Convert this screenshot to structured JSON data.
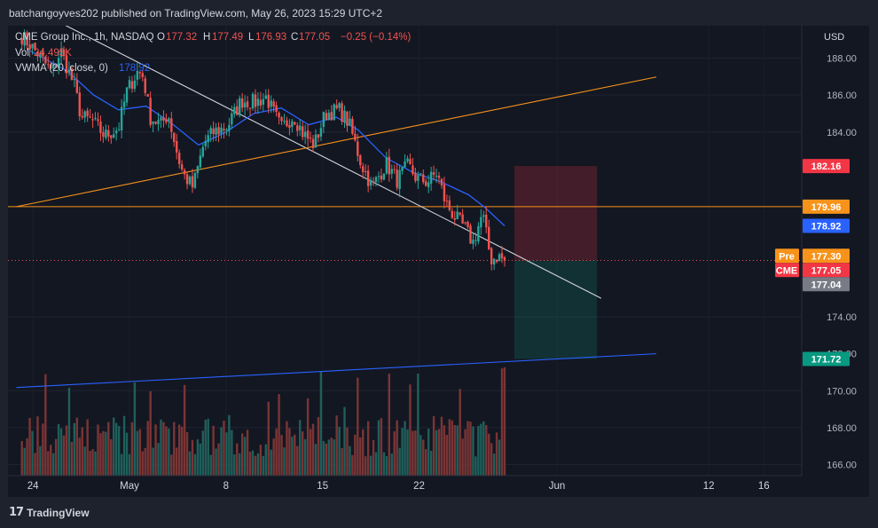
{
  "header": {
    "published_line": "batchangoyves202 published on TradingView.com, May 26, 2023 15:29 UTC+2"
  },
  "legend": {
    "symbol": "CME Group Inc., 1h, NASDAQ",
    "open_label": "O",
    "open": "177.32",
    "high_label": "H",
    "high": "177.49",
    "low_label": "L",
    "low": "176.93",
    "close_label": "C",
    "close": "177.05",
    "change": "−0.25 (−0.14%)",
    "vol_label": "Vol",
    "vol": "24.495K",
    "vwma_label": "VWMA (20, close, 0)",
    "vwma": "178.92"
  },
  "footer": {
    "brand": "TradingView",
    "logo_mark": "17"
  },
  "colors": {
    "background": "#131722",
    "up": "#26a69a",
    "down": "#ef5350",
    "vwma": "#2962ff",
    "trend_orange": "#f7931a",
    "trend_white": "#d1d4dc",
    "trend_blue": "#2962ff"
  },
  "chart_data": {
    "type": "candlestick",
    "currency": "USD",
    "y_ticks": [
      "188.00",
      "186.00",
      "184.00",
      "174.00",
      "170.00",
      "168.00",
      "166.00"
    ],
    "ylim": [
      165.4,
      189.2
    ],
    "x_ticks": [
      {
        "label": "24",
        "day": -7
      },
      {
        "label": "May",
        "day": 0
      },
      {
        "label": "8",
        "day": 7
      },
      {
        "label": "15",
        "day": 14
      },
      {
        "label": "22",
        "day": 21
      },
      {
        "label": "Jun",
        "day": 31
      },
      {
        "label": "12",
        "day": 42
      },
      {
        "label": "16",
        "day": 46
      }
    ],
    "price_tags": [
      {
        "label": "",
        "value": "182.16",
        "price": 182.16,
        "color": "#f23645"
      },
      {
        "label": "",
        "value": "179.96",
        "price": 179.96,
        "color": "#f7931a"
      },
      {
        "label": "",
        "value": "178.92",
        "price": 178.92,
        "color": "#2962ff"
      },
      {
        "label": "Pre",
        "value": "177.30",
        "price": 177.3,
        "color": "#f7931a"
      },
      {
        "label": "CME",
        "value": "177.05",
        "price": 177.05,
        "color": "#f23645"
      },
      {
        "label": "",
        "value": "177.04",
        "price": 177.04,
        "color": "#787b86"
      },
      {
        "label": "",
        "value": "171.72",
        "price": 171.72,
        "color": "#089981"
      }
    ],
    "hidden_tick": "172.00",
    "horizontal_line": {
      "price": 179.96
    },
    "trend_lines": [
      {
        "name": "upper-white",
        "from": {
          "day": -5.5,
          "price": 190.1
        },
        "to": {
          "day": 34.2,
          "price": 175.0
        }
      },
      {
        "name": "rising-orange",
        "from": {
          "day": -8.2,
          "price": 179.96
        },
        "to": {
          "day": 38.2,
          "price": 186.98
        }
      },
      {
        "name": "rising-blue",
        "from": {
          "day": -8.2,
          "price": 170.17
        },
        "to": {
          "day": 38.2,
          "price": 172.0
        }
      }
    ],
    "position": {
      "entry": 177.05,
      "stop": 182.16,
      "target": 171.72,
      "start_day": 27.9,
      "end_day": 33.9
    },
    "ohlc_anchors": [
      {
        "day": -7.8,
        "price": 189.2
      },
      {
        "day": -6.6,
        "price": 188.2
      },
      {
        "day": -5.6,
        "price": 187.2
      },
      {
        "day": -5.0,
        "price": 188.4
      },
      {
        "day": -4.0,
        "price": 186.5
      },
      {
        "day": -3.5,
        "price": 184.8
      },
      {
        "day": -2.7,
        "price": 184.6
      },
      {
        "day": -1.8,
        "price": 183.8
      },
      {
        "day": -0.8,
        "price": 184.2
      },
      {
        "day": -0.2,
        "price": 186.2
      },
      {
        "day": 0.6,
        "price": 187.3
      },
      {
        "day": 1.0,
        "price": 187.0
      },
      {
        "day": 1.5,
        "price": 184.8
      },
      {
        "day": 2.3,
        "price": 184.4
      },
      {
        "day": 2.8,
        "price": 185.0
      },
      {
        "day": 3.5,
        "price": 182.7
      },
      {
        "day": 3.9,
        "price": 181.7
      },
      {
        "day": 4.6,
        "price": 181.0
      },
      {
        "day": 5.4,
        "price": 183.4
      },
      {
        "day": 6.1,
        "price": 184.0
      },
      {
        "day": 7.1,
        "price": 184.3
      },
      {
        "day": 8.1,
        "price": 185.7
      },
      {
        "day": 9.1,
        "price": 185.6
      },
      {
        "day": 9.9,
        "price": 185.9
      },
      {
        "day": 11.0,
        "price": 184.2
      },
      {
        "day": 11.9,
        "price": 184.9
      },
      {
        "day": 12.6,
        "price": 183.9
      },
      {
        "day": 13.4,
        "price": 183.3
      },
      {
        "day": 14.2,
        "price": 185.0
      },
      {
        "day": 15.2,
        "price": 185.2
      },
      {
        "day": 15.9,
        "price": 184.5
      },
      {
        "day": 16.8,
        "price": 182.3
      },
      {
        "day": 17.6,
        "price": 181.0
      },
      {
        "day": 18.6,
        "price": 182.3
      },
      {
        "day": 19.4,
        "price": 181.4
      },
      {
        "day": 20.2,
        "price": 182.2
      },
      {
        "day": 20.8,
        "price": 181.5
      },
      {
        "day": 21.6,
        "price": 181.3
      },
      {
        "day": 22.3,
        "price": 181.8
      },
      {
        "day": 22.9,
        "price": 180.2
      },
      {
        "day": 23.5,
        "price": 179.5
      },
      {
        "day": 24.3,
        "price": 178.8
      },
      {
        "day": 24.9,
        "price": 178.0
      },
      {
        "day": 25.6,
        "price": 179.6
      },
      {
        "day": 25.9,
        "price": 178.3
      },
      {
        "day": 26.2,
        "price": 177.1
      },
      {
        "day": 26.7,
        "price": 177.3
      },
      {
        "day": 27.2,
        "price": 177.05
      }
    ],
    "vwma_anchors": [
      {
        "day": -7.2,
        "price": 188.4
      },
      {
        "day": -4.5,
        "price": 187.3
      },
      {
        "day": -2.6,
        "price": 186.0
      },
      {
        "day": -0.8,
        "price": 185.2
      },
      {
        "day": 1.2,
        "price": 185.4
      },
      {
        "day": 3.0,
        "price": 184.5
      },
      {
        "day": 5.0,
        "price": 183.3
      },
      {
        "day": 7.0,
        "price": 184.0
      },
      {
        "day": 9.0,
        "price": 185.0
      },
      {
        "day": 11.0,
        "price": 185.3
      },
      {
        "day": 13.0,
        "price": 184.4
      },
      {
        "day": 15.0,
        "price": 184.8
      },
      {
        "day": 16.6,
        "price": 184.1
      },
      {
        "day": 18.6,
        "price": 182.6
      },
      {
        "day": 20.6,
        "price": 181.8
      },
      {
        "day": 22.6,
        "price": 181.3
      },
      {
        "day": 24.6,
        "price": 180.6
      },
      {
        "day": 25.8,
        "price": 179.9
      },
      {
        "day": 27.2,
        "price": 178.92
      }
    ],
    "volume": {
      "max_shown_k": 60,
      "last_k": 24.495
    }
  }
}
